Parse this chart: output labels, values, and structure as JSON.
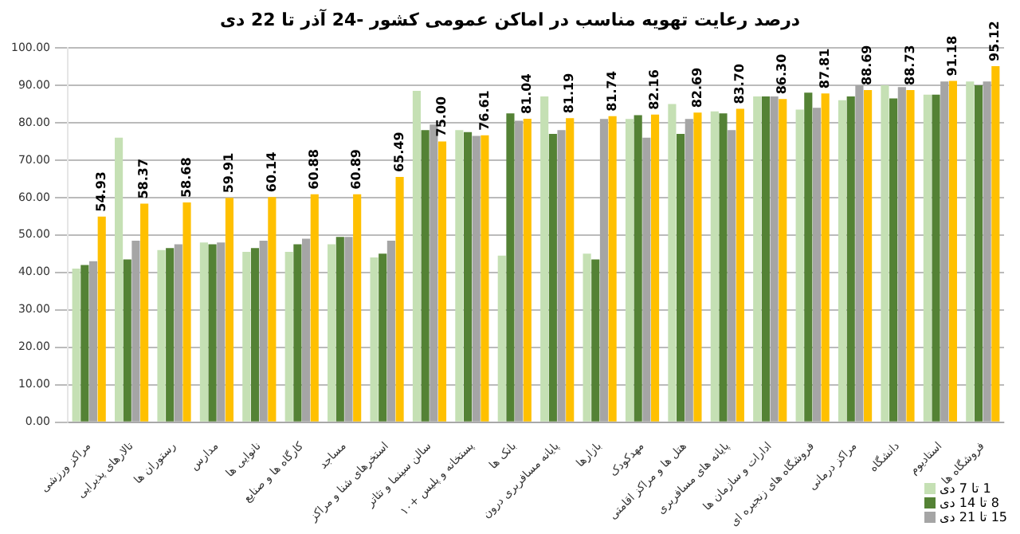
{
  "chart_data": {
    "type": "bar",
    "title": "درصد رعایت تهویه مناسب در اماکن عمومی کشور  -24 آذر تا 22 دی",
    "categories": [
      "مراکز ورزشی",
      "تالارهای پذیرایی",
      "رستوران ها",
      "مدارس",
      "نانوایی ها",
      "کارگاه ها و صنایع",
      "مساجد",
      "استخرهای شنا و مراکز",
      "سالن سینما و تئاتر",
      "پستخانه و پلیس +۱۰",
      "بانک ها",
      "پایانه مسافربری درون",
      "بازارها",
      "مهدکودک",
      "هتل ها و مراکز اقامتی",
      "پایانه های مسافربری",
      "ادارات و سازمان ها",
      "فروشگاه های زنجیره ای",
      "مراکز درمانی",
      "دانشگاه",
      "استادیوم",
      "فروشگاه ها"
    ],
    "series": [
      {
        "name": "1 تا 7 دی",
        "color": "#c5e0b4",
        "values": [
          41,
          76,
          46,
          48,
          45.5,
          45.5,
          47.5,
          44,
          88.5,
          78,
          44.5,
          87,
          45,
          81,
          85,
          83,
          87,
          83.5,
          86,
          90,
          87.5,
          91
        ]
      },
      {
        "name": "8 تا 14 دی",
        "color": "#548235",
        "values": [
          42,
          43.5,
          46.5,
          47.5,
          46.5,
          47.5,
          49.5,
          45,
          78,
          77.5,
          82.5,
          77,
          43.5,
          82,
          77,
          82.5,
          87,
          88,
          87,
          86.5,
          87.5,
          90
        ]
      },
      {
        "name": "15 تا 21 دی",
        "color": "#a5a5a5",
        "values": [
          43,
          48.5,
          47.5,
          48,
          48.5,
          49,
          49.5,
          48.5,
          79.5,
          76.5,
          80.5,
          78,
          81,
          76,
          81,
          78,
          87,
          84,
          90,
          89.5,
          91,
          91
        ]
      },
      {
        "color": "#ffc000",
        "values": [
          54.93,
          58.37,
          58.68,
          59.91,
          60.14,
          60.88,
          60.89,
          65.49,
          75.0,
          76.61,
          81.04,
          81.19,
          81.74,
          82.16,
          82.69,
          83.7,
          86.3,
          87.81,
          88.69,
          88.73,
          91.18,
          95.12
        ],
        "value_labels": [
          "54.93",
          "58.37",
          "58.68",
          "59.91",
          "60.14",
          "60.88",
          "60.89",
          "65.49",
          "75.00",
          "76.61",
          "81.04",
          "81.19",
          "81.74",
          "82.16",
          "82.69",
          "83.70",
          "86.30",
          "87.81",
          "88.69",
          "88.73",
          "91.18",
          "95.12"
        ]
      }
    ],
    "ylim": [
      0,
      100
    ],
    "yticks": [
      {
        "value": 0,
        "label": "0.00"
      },
      {
        "value": 10,
        "label": "10.00"
      },
      {
        "value": 20,
        "label": "20.00"
      },
      {
        "value": 30,
        "label": "30.00"
      },
      {
        "value": 40,
        "label": "40.00"
      },
      {
        "value": 50,
        "label": "50.00"
      },
      {
        "value": 60,
        "label": "60.00"
      },
      {
        "value": 70,
        "label": "70.00"
      },
      {
        "value": 80,
        "label": "80.00"
      },
      {
        "value": 90,
        "label": "90.00"
      },
      {
        "value": 100,
        "label": "100.00"
      }
    ],
    "grid": "y",
    "legend": "bottom right"
  }
}
